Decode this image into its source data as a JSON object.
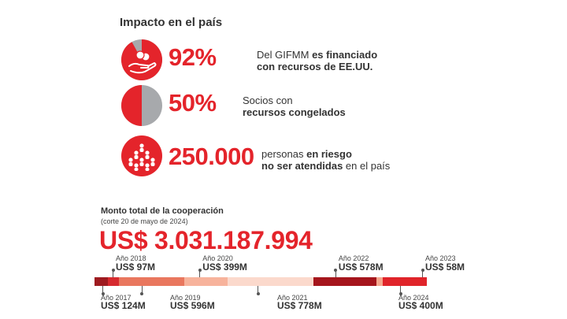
{
  "impact": {
    "title": "Impacto en el país",
    "stats": [
      {
        "value": "92%",
        "line1_normal": "Del GIFMM ",
        "line1_bold": "es financiado",
        "line2_normal": "",
        "line2_bold": "con recursos de EE.UU.",
        "line2_tail": "",
        "pie_fraction": 0.92,
        "icon": "hand-money-pie-icon"
      },
      {
        "value": "50%",
        "line1_normal": "Socios con",
        "line1_bold": "",
        "line2_normal": "",
        "line2_bold": "recursos congelados",
        "line2_tail": "",
        "pie_fraction": 0.5,
        "icon": "pie-half-icon"
      },
      {
        "value": "250.000",
        "line1_normal": "personas ",
        "line1_bold": "en riesgo",
        "line2_normal": "",
        "line2_bold": "no ser atendidas",
        "line2_tail": " en el país",
        "icon": "people-group-icon"
      }
    ]
  },
  "cooperation": {
    "title": "Monto total de la cooperación",
    "note": "(corte 20 de mayo de 2024)",
    "total": "US$ 3.031.187.994"
  },
  "colors": {
    "accent": "#e4242b",
    "pie_rest": "#a7a9ac"
  },
  "chart_data": {
    "type": "bar",
    "orientation": "stacked-horizontal-timeline",
    "currency": "US$",
    "unit": "M",
    "categories": [
      "Año 2017",
      "Año 2018",
      "Año 2019",
      "Año 2020",
      "Año 2021",
      "Año 2022",
      "Año 2023",
      "Año 2024"
    ],
    "values": [
      124,
      97,
      596,
      399,
      778,
      578,
      58,
      400
    ],
    "colors": [
      "#9e1b20",
      "#d62a2f",
      "#e9775e",
      "#f7b39c",
      "#fbd9cc",
      "#a5151c",
      "#f5a88e",
      "#e0242a"
    ],
    "labels": [
      {
        "year": "Año 2017",
        "amount": "US$ 124M",
        "position": "below"
      },
      {
        "year": "Año 2018",
        "amount": "US$ 97M",
        "position": "above"
      },
      {
        "year": "Año 2019",
        "amount": "US$ 596M",
        "position": "below"
      },
      {
        "year": "Año 2020",
        "amount": "US$ 399M",
        "position": "above"
      },
      {
        "year": "Año 2021",
        "amount": "US$ 778M",
        "position": "below"
      },
      {
        "year": "Año 2022",
        "amount": "US$ 578M",
        "position": "above"
      },
      {
        "year": "Año 2023",
        "amount": "US$ 58M",
        "position": "above"
      },
      {
        "year": "Año 2024",
        "amount": "US$ 400M",
        "position": "below"
      }
    ]
  }
}
